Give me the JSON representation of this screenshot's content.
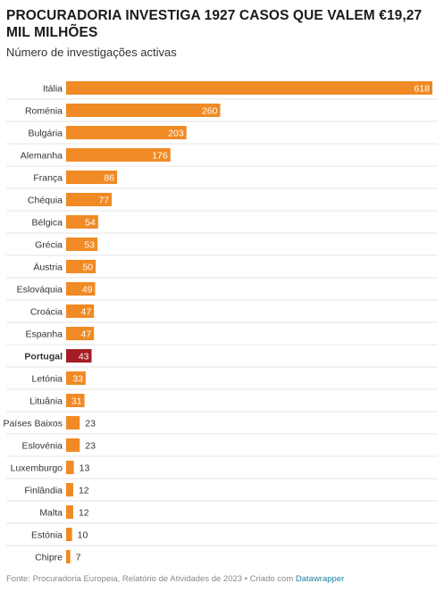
{
  "title": "PROCURADORIA INVESTIGA 1927 CASOS QUE VALEM €19,27 MIL MILHÕES",
  "subtitle": "Número de investigações activas",
  "footer": {
    "text": "Fonte: Procuradoria Europeia, Relatório de Atividades de 2023 • Criado com ",
    "tool": "Datawrapper"
  },
  "colors": {
    "bar": "#f08a24",
    "highlight": "#a51d24",
    "label_in": "#ffffff",
    "label_out": "#333333",
    "divider": "#e6e6e6"
  },
  "chart_data": {
    "type": "bar",
    "orientation": "horizontal",
    "title": "PROCURADORIA INVESTIGA 1927 CASOS QUE VALEM €19,27 MIL MILHÕES",
    "subtitle": "Número de investigações activas",
    "categories": [
      "Itália",
      "Roménia",
      "Bulgária",
      "Alemanha",
      "França",
      "Chéquia",
      "Bélgica",
      "Grécia",
      "Áustria",
      "Eslováquia",
      "Croácia",
      "Espanha",
      "Portugal",
      "Letónia",
      "Lituânia",
      "Países Baixos",
      "Eslovénia",
      "Luxemburgo",
      "Finlândia",
      "Malta",
      "Estónia",
      "Chipre"
    ],
    "values": [
      618,
      260,
      203,
      176,
      86,
      77,
      54,
      53,
      50,
      49,
      47,
      47,
      43,
      33,
      31,
      23,
      23,
      13,
      12,
      12,
      10,
      7
    ],
    "highlight": "Portugal",
    "xlim": [
      0,
      618
    ],
    "grid": false,
    "value_labels": true
  }
}
